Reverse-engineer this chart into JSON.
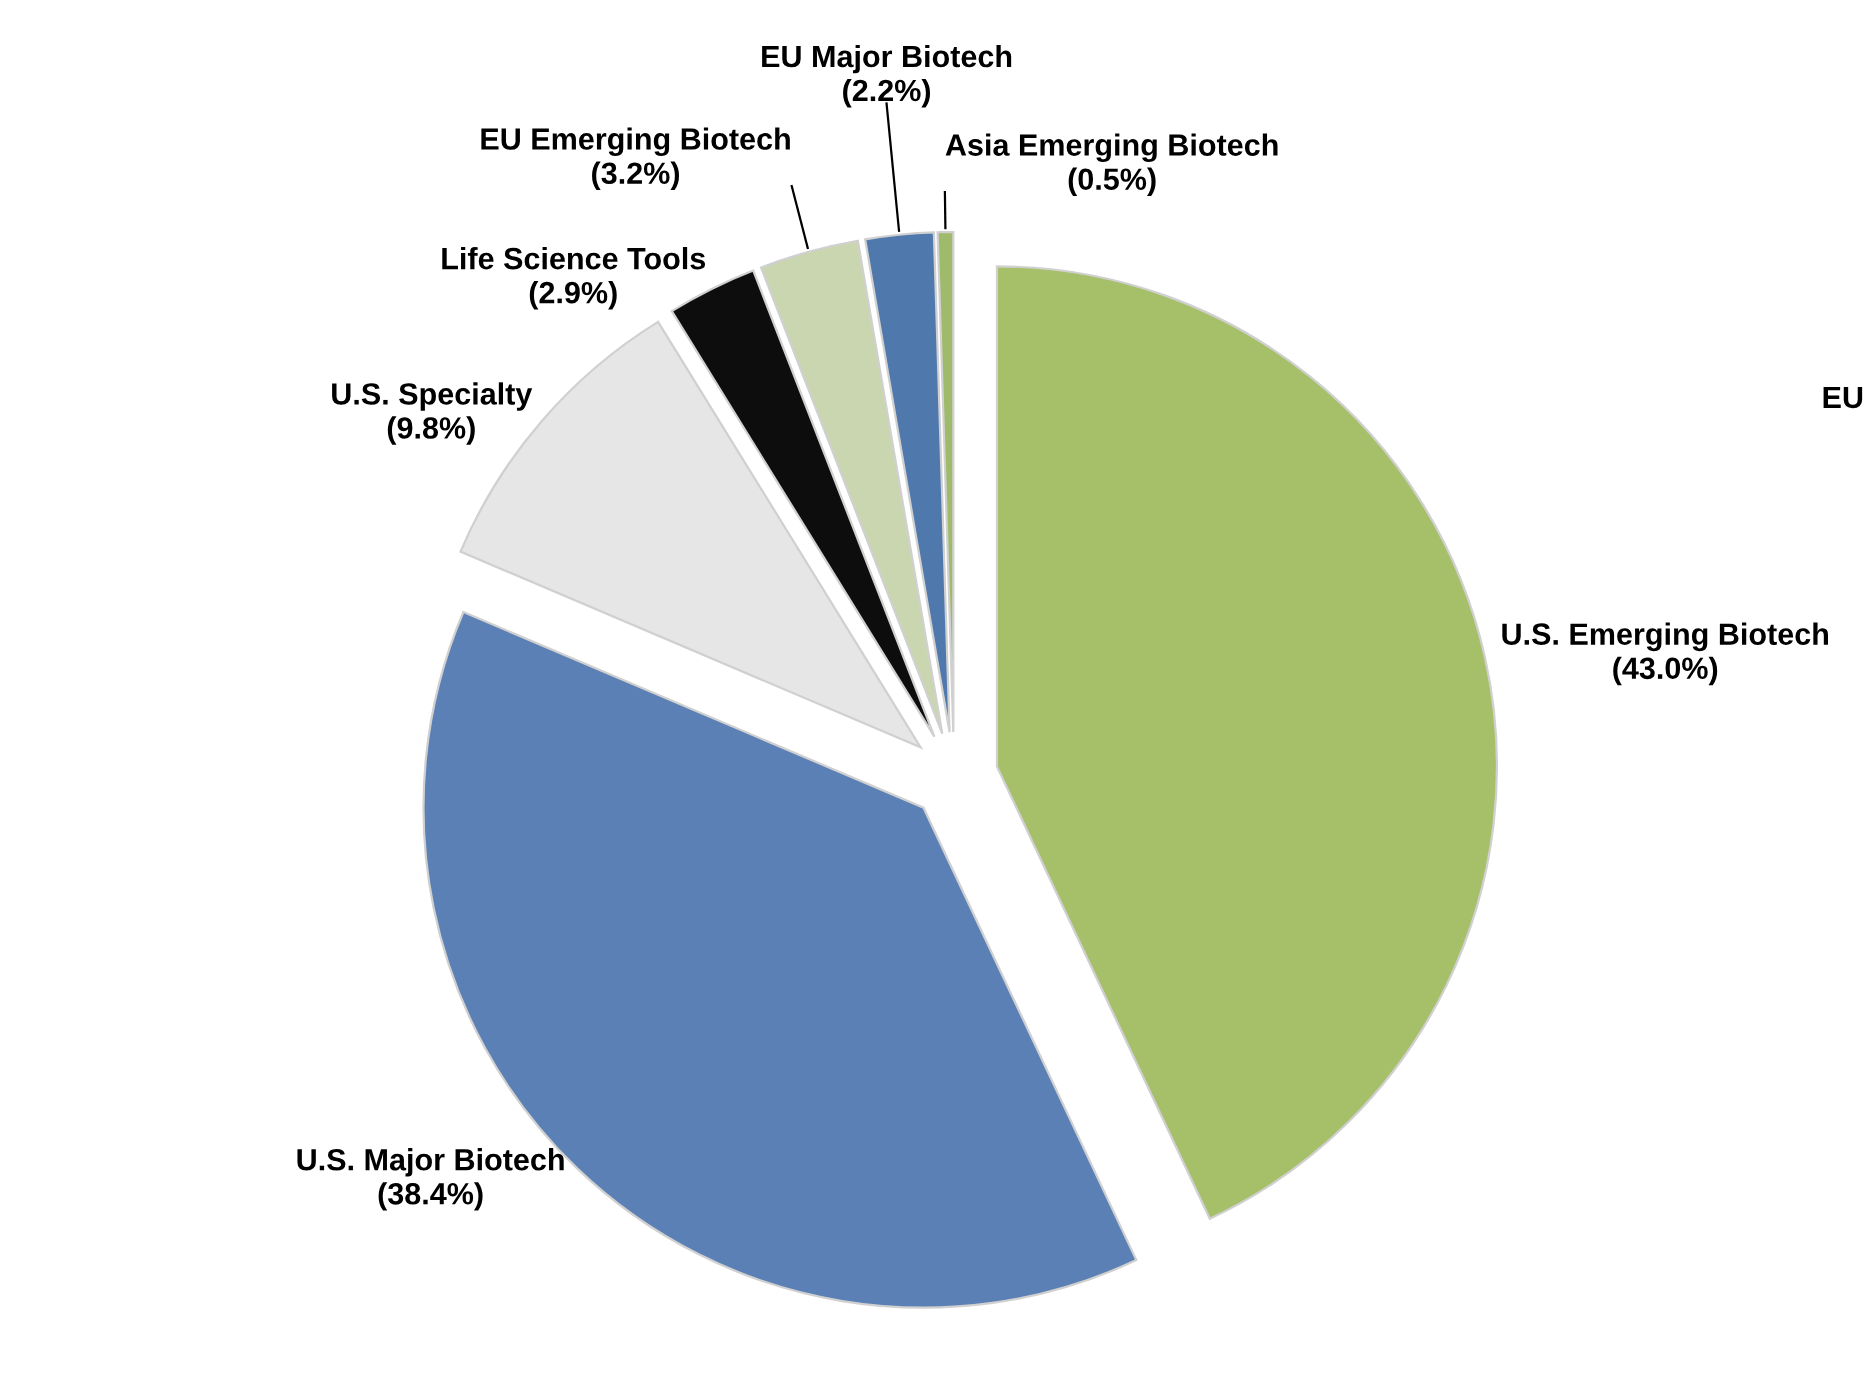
{
  "chart_data": {
    "type": "pie",
    "categories": [
      "U.S. Emerging Biotech",
      "U.S. Major Biotech",
      "U.S. Specialty",
      "Life Science Tools",
      "EU Emerging Biotech",
      "EU Major Biotech",
      "Asia Emerging Biotech"
    ],
    "values": [
      43.0,
      38.4,
      9.8,
      2.9,
      3.2,
      2.2,
      0.5
    ],
    "value_labels": [
      "(43.0%)",
      "(38.4%)",
      "(9.8%)",
      "(2.9%)",
      "(3.2%)",
      "(2.2%)",
      "(0.5%)"
    ],
    "colors": [
      "#a6c06a",
      "#5b80b5",
      "#e6e6e6",
      "#0d0d0d",
      "#c9d6b0",
      "#4f78ad",
      "#9fba6a"
    ],
    "annotations": [
      "EU"
    ],
    "legend": false
  }
}
